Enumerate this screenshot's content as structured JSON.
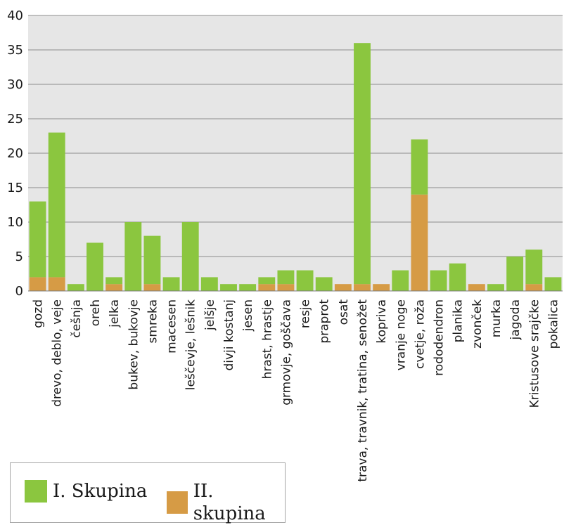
{
  "chart_data": {
    "type": "bar",
    "stacked": true,
    "categories": [
      "gozd",
      "drevo, deblo, veje",
      "češnja",
      "oreh",
      "jelka",
      "bukev, bukovje",
      "smreka",
      "macesen",
      "leščevje, lešnik",
      "jelšje",
      "divji kostanj",
      "jesen",
      "hrast, hrastje",
      "grmovje, goščava",
      "resje",
      "praprot",
      "osat",
      "trava, travnik, tratina, senožet",
      "kopriva",
      "vranje noge",
      "cvetje, roža",
      "rododendron",
      "planika",
      "zvonček",
      "murka",
      "jagoda",
      "Kristusove srajčke",
      "pokalica"
    ],
    "series": [
      {
        "name": "II. skupina",
        "color": "#d69b45",
        "values": [
          2,
          2,
          0,
          0,
          1,
          0,
          1,
          0,
          0,
          0,
          0,
          0,
          1,
          1,
          0,
          0,
          1,
          1,
          1,
          0,
          14,
          0,
          0,
          1,
          0,
          0,
          1,
          0
        ]
      },
      {
        "name": "I. Skupina",
        "color": "#8bc63f",
        "values": [
          11,
          21,
          1,
          7,
          1,
          10,
          7,
          2,
          10,
          2,
          1,
          1,
          1,
          2,
          3,
          2,
          0,
          35,
          0,
          3,
          8,
          3,
          4,
          0,
          1,
          5,
          5,
          2
        ]
      }
    ],
    "ylim": [
      0,
      40
    ],
    "yticks": [
      "0",
      "5",
      "10",
      "15",
      "20",
      "25",
      "30",
      "35",
      "40"
    ],
    "grid": true,
    "legend": {
      "position": "bottom-left",
      "items": [
        {
          "label": "I. Skupina",
          "color": "#8bc63f"
        },
        {
          "label": "II. skupina",
          "color": "#d69b45"
        }
      ]
    },
    "plot_background": "#e6e6e6",
    "gridline_color": "#8c8c8c"
  }
}
